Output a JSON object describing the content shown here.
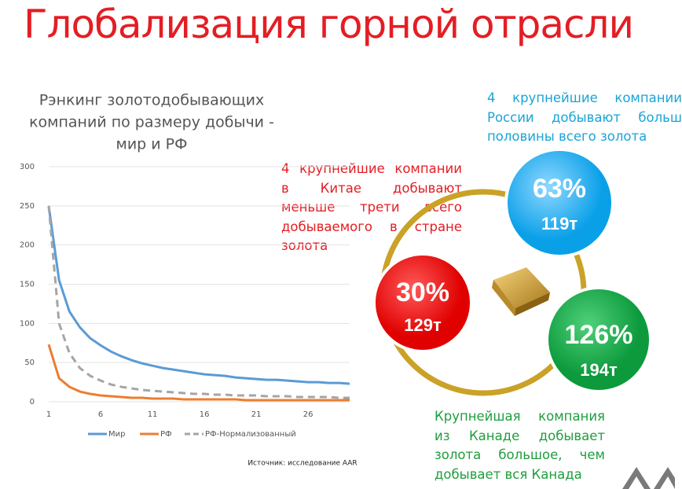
{
  "title": "Глобализация горной отрасли",
  "china_note": [
    "4 крупнейшие компании",
    "в Китае добывают",
    "меньше трети всего",
    "добываемого в стране",
    "золота"
  ],
  "russia_note": [
    "4 крупнейшие компании",
    "России добывают больш",
    "половины всего золота"
  ],
  "canada_note": [
    "Крупнейшая компания",
    "из Канаде добывает",
    "золота большое, чем",
    "добывает вся Канада"
  ],
  "circles": [
    {
      "percent": "63%",
      "tons": "119т"
    },
    {
      "percent": "30%",
      "tons": "129т"
    },
    {
      "percent": "126%",
      "tons": "194т"
    }
  ],
  "source": "Источник: исследование AAR",
  "chart_data": {
    "type": "line",
    "title": [
      "Рэнкинг золотодобывающих",
      "компаний по размеру добычи -",
      "мир и РФ"
    ],
    "x": [
      1,
      2,
      3,
      4,
      5,
      6,
      7,
      8,
      9,
      10,
      11,
      12,
      13,
      14,
      15,
      16,
      17,
      18,
      19,
      20,
      21,
      22,
      23,
      24,
      25,
      26,
      27,
      28,
      29,
      30
    ],
    "xlim": [
      1,
      30
    ],
    "xticks": [
      1,
      6,
      11,
      16,
      21,
      26
    ],
    "ylim": [
      0,
      300
    ],
    "yticks": [
      0,
      50,
      100,
      150,
      200,
      250,
      300
    ],
    "grid": true,
    "series": [
      {
        "name": "Мир",
        "color": "#5b9bd5",
        "dashed": false,
        "values": [
          250,
          155,
          115,
          95,
          81,
          72,
          64,
          58,
          53,
          49,
          46,
          43,
          41,
          39,
          37,
          35,
          34,
          33,
          31,
          30,
          29,
          28,
          28,
          27,
          26,
          25,
          25,
          24,
          24,
          23
        ]
      },
      {
        "name": "РФ",
        "color": "#ed7d31",
        "dashed": false,
        "values": [
          73,
          30,
          19,
          13,
          10,
          8,
          7,
          6,
          5,
          5,
          4,
          4,
          4,
          3,
          3,
          3,
          3,
          3,
          3,
          2,
          2,
          2,
          2,
          2,
          2,
          2,
          2,
          2,
          2,
          2
        ]
      },
      {
        "name": "РФ-Нормализованный",
        "color": "#a5a5a5",
        "dashed": true,
        "values": [
          250,
          100,
          62,
          43,
          33,
          27,
          22,
          19,
          17,
          15,
          14,
          13,
          12,
          11,
          10,
          10,
          9,
          9,
          8,
          8,
          8,
          7,
          7,
          7,
          6,
          6,
          6,
          6,
          5,
          5
        ]
      }
    ]
  }
}
